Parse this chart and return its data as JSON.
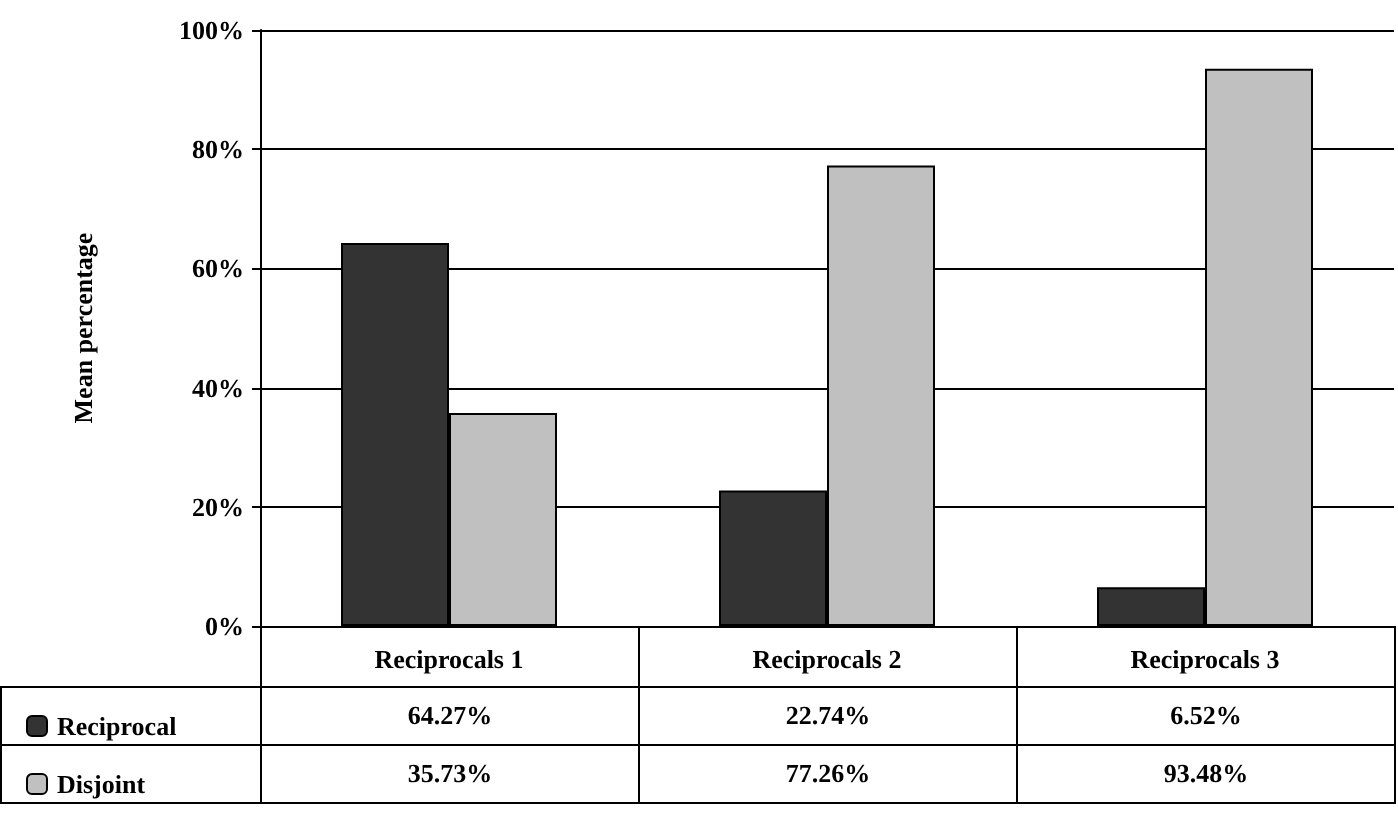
{
  "chart_data": {
    "type": "bar",
    "ylabel": "Mean percentage",
    "categories": [
      "Reciprocals 1",
      "Reciprocals 2",
      "Reciprocals 3"
    ],
    "series": [
      {
        "name": "Reciprocal",
        "color": "#333333",
        "values": [
          64.27,
          22.74,
          6.52
        ],
        "value_labels": [
          "64.27%",
          "22.74%",
          "6.52%"
        ]
      },
      {
        "name": "Disjoint",
        "color": "#c0c0c0",
        "values": [
          35.73,
          77.26,
          93.48
        ],
        "value_labels": [
          "35.73%",
          "77.26%",
          "93.48%"
        ]
      }
    ],
    "ylim": [
      0,
      100
    ],
    "yticks": [
      {
        "value": 0,
        "label": "0%"
      },
      {
        "value": 20,
        "label": "20%"
      },
      {
        "value": 40,
        "label": "40%"
      },
      {
        "value": 60,
        "label": "60%"
      },
      {
        "value": 80,
        "label": "80%"
      },
      {
        "value": 100,
        "label": "100%"
      }
    ],
    "grid": "y",
    "legend": "bottom left"
  }
}
